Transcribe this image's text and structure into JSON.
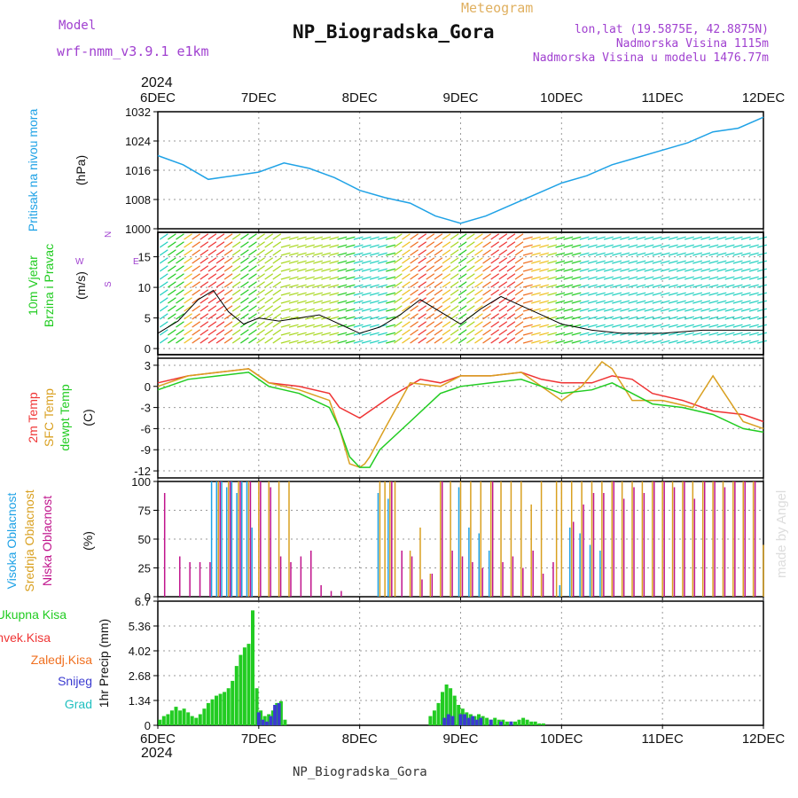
{
  "header": {
    "model_label": "Model",
    "model_name": "wrf-nmm_v3.9.1 e1km",
    "meteogram_label": "Meteogram",
    "station": "NP_Biogradska_Gora",
    "lonlat": "lon,lat (19.5875E, 42.8875N)",
    "altitude": "Nadmorska Visina 1115m",
    "model_altitude": "Nadmorska Visina u modelu 1476.77m",
    "year_top": "2024",
    "year_bottom": "2024",
    "footer_station": "NP_Biogradska_Gora",
    "watermark": "made by Angel"
  },
  "colors": {
    "pressure": "#1fa2e6",
    "temp2m": "#ef3434",
    "sfc_temp": "#d9a020",
    "dewpoint": "#22cc22",
    "high_cloud": "#1fa2e6",
    "mid_cloud": "#d9a020",
    "low_cloud": "#c0148c",
    "total_precip": "#22cc22",
    "conv_precip": "#ef3434",
    "frozen_precip": "#f07020",
    "snow": "#3a3ad0",
    "hail": "#20c0c0",
    "label_purple": "#a040d0",
    "meteogram_orange": "#e0b060"
  },
  "chart_data": [
    {
      "panel": "pressure",
      "type": "line",
      "x_tick_labels": [
        "6DEC",
        "7DEC",
        "8DEC",
        "9DEC",
        "10DEC",
        "11DEC",
        "12DEC"
      ],
      "ylabel": "Pritisak na nivou mora",
      "unit": "(hPa)",
      "ylim": [
        1000,
        1032
      ],
      "yticks": [
        "1000",
        "1008",
        "1016",
        "1024",
        "1032"
      ],
      "grid": true,
      "series": [
        {
          "name": "Pritisak na nivou mora",
          "x_day": [
            0,
            0.25,
            0.5,
            0.75,
            1.0,
            1.25,
            1.5,
            1.75,
            2.0,
            2.25,
            2.5,
            2.75,
            3.0,
            3.25,
            3.5,
            3.75,
            4.0,
            4.25,
            4.5,
            4.75,
            5.0,
            5.25,
            5.5,
            5.75,
            6.0
          ],
          "values": [
            1020,
            1017.5,
            1013.5,
            1014.5,
            1015.5,
            1018,
            1016.5,
            1014,
            1010.5,
            1008.5,
            1007,
            1003.5,
            1001.5,
            1003.5,
            1006.5,
            1009.5,
            1012.5,
            1014.5,
            1017.5,
            1019.5,
            1021.5,
            1023.5,
            1026.5,
            1027.5,
            1030.5
          ]
        }
      ]
    },
    {
      "panel": "wind",
      "type": "line",
      "ylabel_lines": [
        "10m Vjetar",
        "Brzina i Pravac"
      ],
      "unit": "(m/s)",
      "ylim": [
        -1,
        19
      ],
      "yticks": [
        "0",
        "5",
        "10",
        "15"
      ],
      "legend_compass": {
        "n": "N",
        "e": "E",
        "w": "W",
        "s": "S"
      },
      "grid": true,
      "series": [
        {
          "name": "Brzina",
          "x_day": [
            0,
            0.2,
            0.4,
            0.55,
            0.7,
            0.85,
            1.0,
            1.2,
            1.4,
            1.6,
            1.8,
            2.0,
            2.2,
            2.4,
            2.6,
            2.8,
            3.0,
            3.2,
            3.4,
            3.6,
            3.8,
            4.0,
            4.3,
            4.6,
            5.0,
            5.4,
            5.8,
            6.0
          ],
          "values": [
            2.5,
            4.5,
            8,
            9.5,
            6,
            4,
            5,
            4.5,
            5,
            5.5,
            4,
            2.5,
            3.5,
            5.5,
            8,
            6,
            4,
            6.5,
            8.5,
            7,
            5.5,
            4,
            3,
            2.5,
            2.5,
            3,
            3,
            3
          ]
        }
      ]
    },
    {
      "panel": "temperature",
      "type": "line",
      "ylabel_lines": [
        "2m Temp",
        "SFC Temp",
        "dewpt Temp"
      ],
      "unit": "(C)",
      "ylim": [
        -13,
        4
      ],
      "yticks": [
        "-12",
        "-9",
        "-6",
        "-3",
        "0",
        "3"
      ],
      "grid": true,
      "series": [
        {
          "name": "2m Temp",
          "x_day": [
            0,
            0.3,
            0.6,
            0.9,
            1.1,
            1.4,
            1.7,
            1.8,
            2.0,
            2.3,
            2.6,
            2.8,
            3.0,
            3.3,
            3.6,
            3.8,
            4.0,
            4.3,
            4.5,
            4.7,
            4.9,
            5.2,
            5.5,
            5.8,
            6.0
          ],
          "values": [
            0.5,
            1.5,
            2,
            2.5,
            0.5,
            0,
            -1,
            -3,
            -4.5,
            -1.5,
            1,
            0.5,
            1.5,
            1.5,
            2,
            1,
            0.5,
            0.5,
            1.5,
            1,
            -1,
            -2,
            -3.5,
            -4,
            -5
          ]
        },
        {
          "name": "SFC Temp",
          "x_day": [
            0,
            0.3,
            0.6,
            0.9,
            1.1,
            1.4,
            1.7,
            1.8,
            1.9,
            2.0,
            2.05,
            2.1,
            2.25,
            2.5,
            2.8,
            3.0,
            3.3,
            3.6,
            3.8,
            4.0,
            4.2,
            4.4,
            4.5,
            4.7,
            5.0,
            5.3,
            5.5,
            5.8,
            6.0
          ],
          "values": [
            0,
            1.5,
            2,
            2.5,
            0.5,
            -0.5,
            -2,
            -6,
            -11,
            -11.5,
            -11,
            -10,
            -6,
            0.5,
            0,
            1.5,
            1.5,
            2,
            0,
            -2,
            0,
            3.5,
            2.5,
            -2,
            -2,
            -3,
            1.5,
            -5,
            -6
          ]
        },
        {
          "name": "dewpt Temp",
          "x_day": [
            0,
            0.3,
            0.6,
            0.9,
            1.1,
            1.4,
            1.7,
            1.8,
            1.9,
            2.0,
            2.1,
            2.2,
            2.5,
            2.8,
            3.0,
            3.3,
            3.6,
            3.8,
            4.0,
            4.3,
            4.5,
            4.7,
            4.9,
            5.2,
            5.5,
            5.8,
            6.0
          ],
          "values": [
            -0.5,
            1,
            1.5,
            2,
            0,
            -1,
            -3,
            -6,
            -10,
            -11.5,
            -11.5,
            -9,
            -5,
            -1,
            0,
            0.5,
            1,
            0,
            -1,
            -0.5,
            0.5,
            -1,
            -2.5,
            -3,
            -4,
            -6,
            -6.5
          ]
        }
      ]
    },
    {
      "panel": "cloud",
      "type": "bar",
      "ylabel_lines": [
        "Visoka Oblacnost",
        "Srednja Oblacnost",
        "Niska Oblacnost"
      ],
      "unit": "(%)",
      "ylim": [
        0,
        100
      ],
      "yticks": [
        "0",
        "25",
        "50",
        "75",
        "100"
      ],
      "grid": true,
      "series": [
        {
          "name": "Visoka Oblacnost",
          "x_day": [
            0.55,
            0.6,
            0.65,
            0.7,
            0.75,
            0.8,
            0.85,
            0.9,
            0.95,
            2.2,
            2.3,
            3.0,
            3.1,
            3.2,
            3.3,
            4.0,
            4.1,
            4.2,
            4.3,
            4.4
          ],
          "values": [
            100,
            100,
            100,
            95,
            100,
            90,
            100,
            100,
            60,
            90,
            85,
            95,
            60,
            55,
            40,
            10,
            60,
            55,
            45,
            40
          ]
        },
        {
          "name": "Srednja Oblacnost",
          "x_day": [
            0.6,
            0.7,
            0.8,
            0.9,
            1.0,
            1.1,
            1.2,
            1.3,
            2.2,
            2.25,
            2.3,
            2.35,
            2.5,
            2.6,
            2.7,
            2.8,
            2.9,
            3.0,
            3.1,
            3.2,
            3.3,
            3.4,
            3.5,
            3.6,
            3.7,
            3.8,
            3.95,
            4.0,
            4.1,
            4.2,
            4.3,
            4.4,
            4.5,
            4.6,
            4.7,
            4.8,
            4.9,
            5.0,
            5.1,
            5.2,
            5.3,
            5.4,
            5.5,
            5.6,
            5.7,
            5.8,
            5.9,
            6.0
          ],
          "values": [
            100,
            100,
            100,
            100,
            100,
            100,
            100,
            100,
            100,
            100,
            100,
            100,
            40,
            60,
            20,
            100,
            100,
            100,
            100,
            100,
            100,
            100,
            100,
            100,
            80,
            100,
            100,
            100,
            100,
            100,
            100,
            100,
            100,
            100,
            100,
            100,
            100,
            100,
            100,
            100,
            100,
            100,
            100,
            100,
            100,
            100,
            100,
            45
          ]
        },
        {
          "name": "Niska Oblacnost",
          "x_day": [
            0.05,
            0.2,
            0.3,
            0.4,
            0.5,
            0.6,
            0.7,
            0.8,
            0.9,
            1.0,
            1.1,
            1.2,
            1.3,
            1.4,
            1.5,
            1.6,
            1.7,
            1.8,
            2.3,
            2.4,
            2.5,
            2.6,
            2.7,
            2.8,
            2.9,
            3.0,
            3.1,
            3.2,
            3.3,
            3.4,
            3.5,
            3.6,
            3.7,
            3.8,
            3.9,
            4.1,
            4.2,
            4.3,
            4.4,
            4.5,
            4.6,
            4.7,
            4.8,
            4.9,
            5.0,
            5.1,
            5.2,
            5.3,
            5.4,
            5.5,
            5.6,
            5.7,
            5.8,
            5.9
          ],
          "values": [
            90,
            35,
            30,
            30,
            30,
            100,
            100,
            100,
            100,
            100,
            95,
            35,
            30,
            35,
            40,
            10,
            5,
            5,
            100,
            40,
            35,
            15,
            20,
            100,
            40,
            35,
            30,
            25,
            100,
            30,
            35,
            25,
            40,
            20,
            30,
            65,
            80,
            90,
            90,
            100,
            85,
            95,
            90,
            100,
            100,
            95,
            100,
            85,
            100,
            100,
            95,
            100,
            100,
            100
          ]
        }
      ]
    },
    {
      "panel": "precip",
      "type": "bar",
      "legend": [
        "Ukupna Kisa",
        "Konvek.Kisa",
        "Zaledj.Kisa",
        "Snijeg",
        "Grad"
      ],
      "ylabel": "1hr Precip (mm)",
      "ylim": [
        0,
        6.7
      ],
      "yticks": [
        "0",
        "1.34",
        "2.68",
        "4.02",
        "5.36",
        "6.7"
      ],
      "grid": true,
      "series": [
        {
          "name": "Ukupna Kisa",
          "x_day": [
            0.02,
            0.06,
            0.1,
            0.14,
            0.18,
            0.22,
            0.26,
            0.3,
            0.34,
            0.38,
            0.42,
            0.46,
            0.5,
            0.54,
            0.58,
            0.62,
            0.66,
            0.7,
            0.74,
            0.78,
            0.82,
            0.86,
            0.9,
            0.94,
            0.98,
            1.02,
            1.06,
            1.1,
            1.14,
            1.18,
            1.22,
            1.26,
            2.7,
            2.74,
            2.78,
            2.82,
            2.86,
            2.9,
            2.94,
            2.98,
            3.02,
            3.06,
            3.1,
            3.14,
            3.18,
            3.22,
            3.26,
            3.3,
            3.34,
            3.38,
            3.42,
            3.46,
            3.5,
            3.54,
            3.58,
            3.62,
            3.66,
            3.7,
            3.74,
            3.78,
            3.82
          ],
          "values": [
            0.3,
            0.5,
            0.6,
            0.8,
            1.0,
            0.8,
            0.9,
            0.7,
            0.5,
            0.4,
            0.6,
            0.9,
            1.2,
            1.4,
            1.6,
            1.7,
            1.8,
            2.0,
            2.4,
            3.2,
            3.8,
            4.2,
            4.4,
            6.2,
            2.0,
            0.8,
            0.5,
            0.6,
            0.8,
            1.2,
            1.3,
            0.3,
            0.5,
            0.8,
            1.2,
            1.8,
            2.2,
            2.0,
            1.6,
            1.1,
            0.9,
            0.7,
            0.6,
            0.5,
            0.6,
            0.5,
            0.4,
            0.3,
            0.4,
            0.3,
            0.3,
            0.2,
            0.2,
            0.2,
            0.3,
            0.4,
            0.3,
            0.2,
            0.2,
            0.1,
            0.1
          ]
        },
        {
          "name": "Snijeg",
          "x_day": [
            1.0,
            1.04,
            1.08,
            1.12,
            1.16,
            1.2,
            2.84,
            2.88,
            2.92,
            3.0,
            3.04,
            3.08,
            3.12,
            3.16,
            3.2,
            3.3,
            3.4,
            3.5
          ],
          "values": [
            0.7,
            0.3,
            0.2,
            0.5,
            1.1,
            1.2,
            0.4,
            0.6,
            0.5,
            0.6,
            0.6,
            0.4,
            0.5,
            0.3,
            0.4,
            0.3,
            0.2,
            0.2
          ]
        }
      ]
    }
  ]
}
